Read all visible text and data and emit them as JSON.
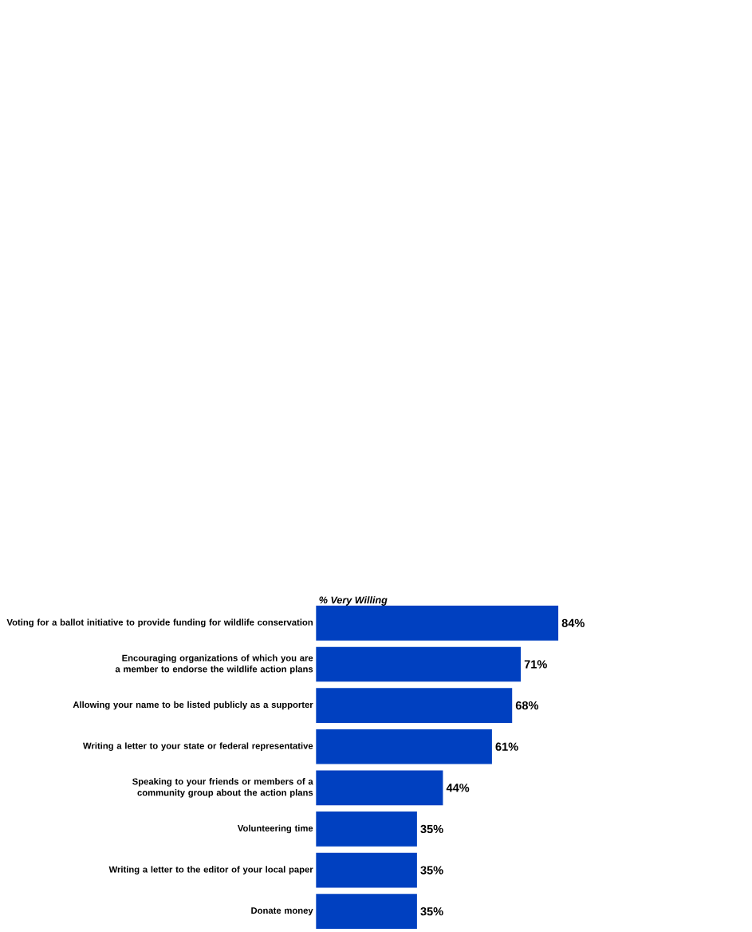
{
  "chart_data": {
    "type": "bar",
    "orientation": "horizontal",
    "title": "% Very Willing",
    "categories": [
      "Voting for a ballot initiative to provide funding for wildlife conservation",
      "Encouraging organizations of which you are a member to endorse the wildlife action plans",
      "Allowing your name to be listed publicly as a supporter",
      "Writing a letter to your state or federal representative",
      "Speaking to your friends or members of a community group about the action plans",
      "Volunteering time",
      "Writing a letter to the editor of your local paper",
      "Donate money"
    ],
    "values": [
      84,
      71,
      68,
      61,
      44,
      35,
      35,
      35
    ],
    "value_labels": [
      "84%",
      "71%",
      "68%",
      "61%",
      "44%",
      "35%",
      "35%",
      "35%"
    ],
    "color": "#0040c0"
  }
}
